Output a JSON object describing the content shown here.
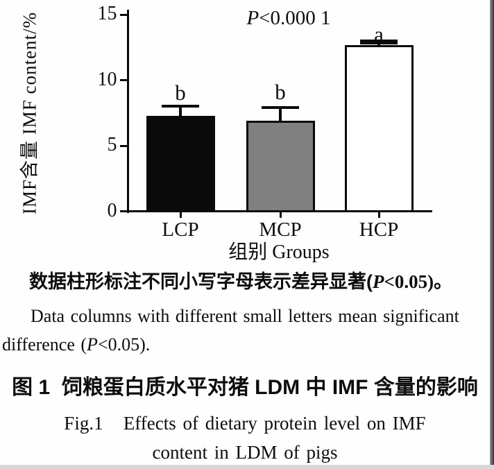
{
  "chart_data": {
    "type": "bar",
    "title": "",
    "categories": [
      "LCP",
      "MCP",
      "HCP"
    ],
    "values": [
      7.3,
      6.9,
      12.7
    ],
    "errors_upper": [
      0.75,
      1.0,
      0.25
    ],
    "sig_letters": [
      "b",
      "b",
      "a"
    ],
    "bar_colors": [
      "#0a0a0a",
      "#808080",
      "#ffffff"
    ],
    "bar_border_color": "#0a0a0a",
    "ylabel": "IMF含量 IMF content/%",
    "xlabel": "组别 Groups",
    "ylim": [
      0,
      15
    ],
    "yticks": [
      0,
      5,
      10,
      15
    ],
    "grid": false,
    "legend": "none",
    "annotation": {
      "italic": "P",
      "rest": "<0.000 1"
    }
  },
  "notes": {
    "cn": {
      "pre": "数据柱形标注不同小写字母表示差异显著(",
      "p": "P",
      "post": "<0.05)。"
    },
    "en_line1": "Data columns with different small letters mean significant",
    "en_line2": {
      "pre": "difference (",
      "p": "P",
      "post": "<0.05)."
    }
  },
  "caption": {
    "cn": "图 1  饲粮蛋白质水平对猪 LDM 中 IMF 含量的影响",
    "en_line1": "Fig.1   Effects of dietary protein level on IMF",
    "en_line2": "content in LDM of pigs"
  }
}
